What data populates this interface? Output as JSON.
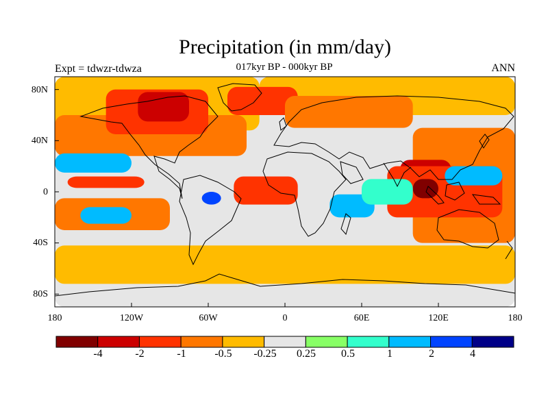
{
  "map": {
    "title": "Precipitation (in mm/day)",
    "subtitle": "017kyr BP - 000kyr BP",
    "left_label": "Expt = tdwzr-tdwza",
    "right_label": "ANN",
    "lat_ticks": [
      "80N",
      "40N",
      "0",
      "40S",
      "80S"
    ],
    "lon_ticks": [
      "180",
      "120W",
      "60W",
      "0",
      "60E",
      "120E",
      "180"
    ]
  },
  "colorbar": {
    "colors": [
      "#800000",
      "#cc0000",
      "#ff3300",
      "#ff7700",
      "#ffbb00",
      "#e6e6e6",
      "#88ff66",
      "#33ffcc",
      "#00bbff",
      "#0044ff",
      "#000088"
    ],
    "labels": [
      "-4",
      "-2",
      "-1",
      "-0.5",
      "-0.25",
      "0.25",
      "0.5",
      "1",
      "2",
      "4"
    ]
  },
  "chart_data": {
    "type": "heatmap",
    "title": "Precipitation (in mm/day)",
    "subtitle": "017kyr BP - 000kyr BP",
    "xlabel": "",
    "ylabel": "",
    "xlim": [
      -180,
      180
    ],
    "ylim": [
      -90,
      90
    ],
    "x_ticks": [
      -180,
      -120,
      -60,
      0,
      60,
      120,
      180
    ],
    "y_ticks": [
      80,
      40,
      0,
      -40,
      -80
    ],
    "levels": [
      -4,
      -2,
      -1,
      -0.5,
      -0.25,
      0.25,
      0.5,
      1,
      2,
      4
    ],
    "regions": [
      {
        "lon": [
          -180,
          180
        ],
        "lat": [
          -90,
          90
        ],
        "value": 0
      },
      {
        "lon": [
          -180,
          -20
        ],
        "lat": [
          48,
          90
        ],
        "value": -0.3
      },
      {
        "lon": [
          -20,
          180
        ],
        "lat": [
          60,
          90
        ],
        "value": -0.3
      },
      {
        "lon": [
          -180,
          180
        ],
        "lat": [
          -72,
          -42
        ],
        "value": -0.3
      },
      {
        "lon": [
          -180,
          -30
        ],
        "lat": [
          28,
          60
        ],
        "value": -0.7
      },
      {
        "lon": [
          -140,
          -60
        ],
        "lat": [
          45,
          80
        ],
        "value": -1.5
      },
      {
        "lon": [
          -115,
          -75
        ],
        "lat": [
          55,
          78
        ],
        "value": -3
      },
      {
        "lon": [
          -45,
          10
        ],
        "lat": [
          60,
          82
        ],
        "value": -1.5
      },
      {
        "lon": [
          0,
          100
        ],
        "lat": [
          50,
          75
        ],
        "value": -0.7
      },
      {
        "lon": [
          100,
          180
        ],
        "lat": [
          -40,
          50
        ],
        "value": -0.7
      },
      {
        "lon": [
          90,
          130
        ],
        "lat": [
          -10,
          25
        ],
        "value": -3
      },
      {
        "lon": [
          80,
          170
        ],
        "lat": [
          -20,
          20
        ],
        "value": -1.5
      },
      {
        "lon": [
          100,
          120
        ],
        "lat": [
          -5,
          10
        ],
        "value": -5
      },
      {
        "lon": [
          -180,
          -90
        ],
        "lat": [
          -30,
          -5
        ],
        "value": -0.7
      },
      {
        "lon": [
          -170,
          -110
        ],
        "lat": [
          3,
          12
        ],
        "value": -1.5
      },
      {
        "lon": [
          -40,
          10
        ],
        "lat": [
          -10,
          12
        ],
        "value": -1.5
      },
      {
        "lon": [
          -180,
          -120
        ],
        "lat": [
          15,
          30
        ],
        "value": 1
      },
      {
        "lon": [
          -160,
          -120
        ],
        "lat": [
          -25,
          -12
        ],
        "value": 1
      },
      {
        "lon": [
          -65,
          -50
        ],
        "lat": [
          -10,
          0
        ],
        "value": 3
      },
      {
        "lon": [
          35,
          70
        ],
        "lat": [
          -20,
          -2
        ],
        "value": 1.5
      },
      {
        "lon": [
          60,
          100
        ],
        "lat": [
          -10,
          10
        ],
        "value": 0.7
      },
      {
        "lon": [
          125,
          170
        ],
        "lat": [
          5,
          20
        ],
        "value": 1
      }
    ]
  }
}
